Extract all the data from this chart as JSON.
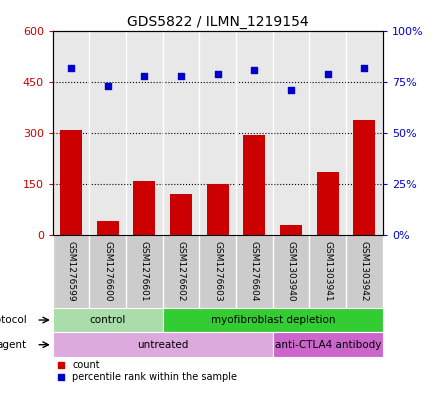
{
  "title": "GDS5822 / ILMN_1219154",
  "samples": [
    "GSM1276599",
    "GSM1276600",
    "GSM1276601",
    "GSM1276602",
    "GSM1276603",
    "GSM1276604",
    "GSM1303940",
    "GSM1303941",
    "GSM1303942"
  ],
  "counts": [
    310,
    40,
    160,
    120,
    150,
    295,
    30,
    185,
    340
  ],
  "percentiles": [
    82,
    73,
    78,
    78,
    79,
    81,
    71,
    79,
    82
  ],
  "ylim_left": [
    0,
    600
  ],
  "ylim_right": [
    0,
    100
  ],
  "yticks_left": [
    0,
    150,
    300,
    450,
    600
  ],
  "yticks_right": [
    0,
    25,
    50,
    75,
    100
  ],
  "ytick_labels_left": [
    "0",
    "150",
    "300",
    "450",
    "600"
  ],
  "ytick_labels_right": [
    "0%",
    "25%",
    "50%",
    "75%",
    "100%"
  ],
  "bar_color": "#cc0000",
  "scatter_color": "#0000cc",
  "protocol_groups": [
    {
      "label": "control",
      "start": 0,
      "end": 3,
      "color": "#aaddaa"
    },
    {
      "label": "myofibroblast depletion",
      "start": 3,
      "end": 9,
      "color": "#33cc33"
    }
  ],
  "agent_groups": [
    {
      "label": "untreated",
      "start": 0,
      "end": 6,
      "color": "#ddaadd"
    },
    {
      "label": "anti-CTLA4 antibody",
      "start": 6,
      "end": 9,
      "color": "#cc66cc"
    }
  ],
  "bg_plot": "#e8e8e8",
  "bg_labels": "#cccccc",
  "label_fontsize": 7,
  "sample_fontsize": 6.5,
  "title_fontsize": 10
}
